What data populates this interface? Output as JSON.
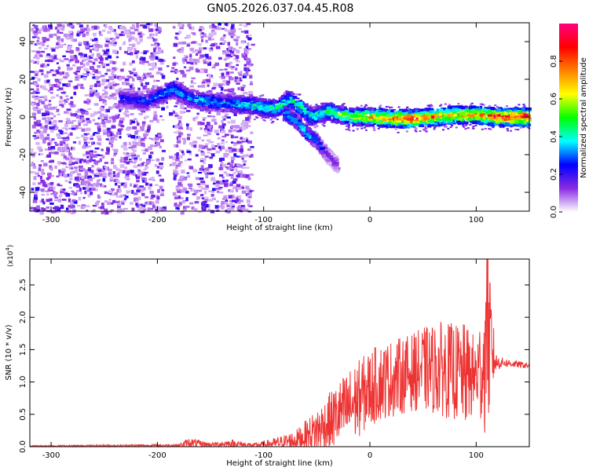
{
  "title": "GN05.2026.037.04.45.R08",
  "chart_data": [
    {
      "type": "heatmap",
      "xlabel": "Height of straight line (km)",
      "ylabel": "Frequency (Hz)",
      "xlim": [
        -320,
        150
      ],
      "ylim": [
        -50,
        50
      ],
      "xticks": [
        -300,
        -200,
        -100,
        0,
        100
      ],
      "yticks": [
        -40,
        -20,
        0,
        20,
        40
      ],
      "colorbar": {
        "label": "Normalized spectral amplitude",
        "range": [
          0.0,
          1.0
        ],
        "ticks": [
          "0.0",
          "0.2",
          "0.4",
          "0.6",
          "0.8"
        ],
        "colors": [
          "#ffffff",
          "#8a2be2",
          "#0000ff",
          "#00ffff",
          "#00ff00",
          "#ffff00",
          "#ff8000",
          "#ff0000",
          "#ff0080"
        ]
      },
      "ridge": [
        {
          "x": -235,
          "f": 10,
          "a": 0.25
        },
        {
          "x": -210,
          "f": 8,
          "a": 0.3
        },
        {
          "x": -185,
          "f": 15,
          "a": 0.4
        },
        {
          "x": -170,
          "f": 10,
          "a": 0.35
        },
        {
          "x": -150,
          "f": 8,
          "a": 0.4
        },
        {
          "x": -130,
          "f": 7,
          "a": 0.35
        },
        {
          "x": -110,
          "f": 6,
          "a": 0.45
        },
        {
          "x": -100,
          "f": 5,
          "a": 0.45
        },
        {
          "x": -90,
          "f": 4,
          "a": 0.5
        },
        {
          "x": -75,
          "f": 9,
          "a": 0.45
        },
        {
          "x": -65,
          "f": 5,
          "a": 0.5
        },
        {
          "x": -55,
          "f": 0,
          "a": 0.45
        },
        {
          "x": -40,
          "f": 3,
          "a": 0.5
        },
        {
          "x": -20,
          "f": 0,
          "a": 0.6
        },
        {
          "x": 0,
          "f": 0,
          "a": 0.75
        },
        {
          "x": 20,
          "f": -1,
          "a": 0.85
        },
        {
          "x": 40,
          "f": -1,
          "a": 0.9
        },
        {
          "x": 60,
          "f": 0,
          "a": 0.8
        },
        {
          "x": 80,
          "f": 1,
          "a": 0.75
        },
        {
          "x": 100,
          "f": 1,
          "a": 0.8
        },
        {
          "x": 120,
          "f": 0,
          "a": 0.95
        },
        {
          "x": 150,
          "f": 0,
          "a": 0.95
        }
      ],
      "branch": [
        {
          "x": -80,
          "f": 2,
          "a": 0.45
        },
        {
          "x": -70,
          "f": -2,
          "a": 0.4
        },
        {
          "x": -60,
          "f": -8,
          "a": 0.4
        },
        {
          "x": -50,
          "f": -13,
          "a": 0.35
        },
        {
          "x": -40,
          "f": -20,
          "a": 0.2
        },
        {
          "x": -30,
          "f": -26,
          "a": 0.15
        }
      ]
    },
    {
      "type": "line",
      "xlabel": "Height of straight line (km)",
      "ylabel": "SNR (10 * v/v)",
      "scale_label": "(x10",
      "scale_exp": "4",
      "scale_close": ")",
      "xlim": [
        -320,
        150
      ],
      "ylim": [
        0,
        2.9
      ],
      "xticks": [
        -300,
        -200,
        -100,
        0,
        100
      ],
      "yticks": [
        "0.0",
        "0.5",
        "1.0",
        "1.5",
        "2.0",
        "2.5"
      ],
      "color": "#ee3333",
      "envelope_x": [
        -320,
        -180,
        -170,
        -150,
        -130,
        -110,
        -90,
        -70,
        -55,
        -40,
        -30,
        -20,
        -10,
        0,
        10,
        20,
        30,
        40,
        50,
        60,
        70,
        80,
        90,
        100,
        108,
        112,
        118,
        125,
        140,
        150
      ],
      "envelope_mean": [
        0.01,
        0.02,
        0.06,
        0.03,
        0.05,
        0.02,
        0.05,
        0.1,
        0.2,
        0.35,
        0.5,
        0.6,
        0.75,
        0.9,
        1.0,
        1.05,
        1.1,
        1.15,
        1.2,
        1.2,
        1.2,
        1.15,
        1.1,
        1.1,
        1.3,
        1.7,
        1.3,
        1.3,
        1.27,
        1.25
      ],
      "envelope_amp": [
        0.01,
        0.02,
        0.08,
        0.03,
        0.06,
        0.03,
        0.08,
        0.15,
        0.3,
        0.45,
        0.5,
        0.6,
        0.6,
        0.6,
        0.6,
        0.6,
        0.6,
        0.6,
        0.65,
        0.7,
        0.75,
        0.75,
        0.8,
        0.6,
        1.1,
        1.3,
        0.15,
        0.07,
        0.05,
        0.04
      ]
    }
  ]
}
